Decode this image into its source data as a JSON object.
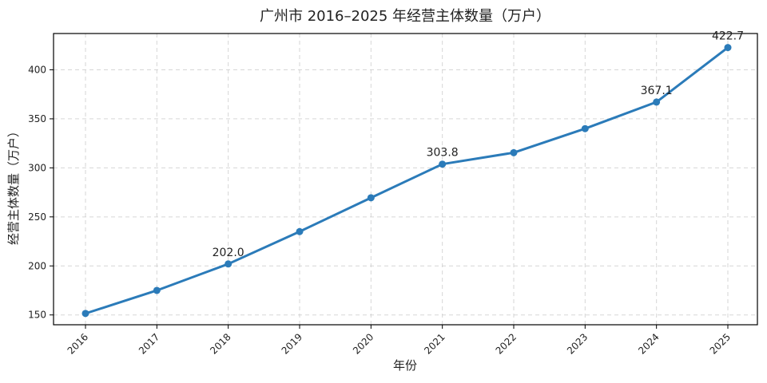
{
  "chart_data": {
    "type": "line",
    "title": "广州市 2016–2025 年经营主体数量（万户）",
    "xlabel": "年份",
    "ylabel": "经营主体数量（万户）",
    "categories": [
      "2016",
      "2017",
      "2018",
      "2019",
      "2020",
      "2021",
      "2022",
      "2023",
      "2024",
      "2025"
    ],
    "series": [
      {
        "values": [
          151.5,
          175.0,
          202.0,
          235.0,
          269.5,
          303.8,
          315.5,
          340.0,
          367.1,
          422.7
        ],
        "color": "#2b7bb9"
      }
    ],
    "data_labels": [
      {
        "index": 2,
        "text": "202.0"
      },
      {
        "index": 5,
        "text": "303.8"
      },
      {
        "index": 8,
        "text": "367.1"
      },
      {
        "index": 9,
        "text": "422.7"
      }
    ],
    "yticks": [
      150,
      200,
      250,
      300,
      350,
      400
    ],
    "ylim": [
      140,
      437
    ],
    "grid": true,
    "x_tick_rotation": 45
  }
}
